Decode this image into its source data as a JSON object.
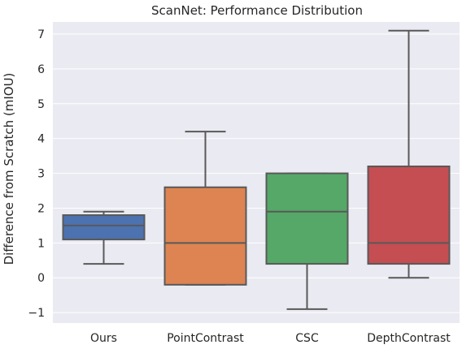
{
  "chart_data": {
    "type": "box",
    "title": "ScanNet: Performance Distribution",
    "xlabel": "",
    "ylabel": "Difference from Scratch (mIOU)",
    "ylim": [
      -1.3,
      7.35
    ],
    "yticks": [
      -1,
      0,
      1,
      2,
      3,
      4,
      5,
      6,
      7
    ],
    "grid": true,
    "background": "#eaeaf2",
    "median_color": "#595959",
    "categories": [
      "Ours",
      "PointContrast",
      "CSC",
      "DepthContrast"
    ],
    "boxes": [
      {
        "category": "Ours",
        "whisker_low": 0.4,
        "q1": 1.1,
        "median": 1.5,
        "q3": 1.8,
        "whisker_high": 1.9,
        "color": "#4c72b0"
      },
      {
        "category": "PointContrast",
        "whisker_low": -0.2,
        "q1": -0.2,
        "median": 1.0,
        "q3": 2.6,
        "whisker_high": 4.2,
        "color": "#dd8452"
      },
      {
        "category": "CSC",
        "whisker_low": -0.9,
        "q1": 0.4,
        "median": 1.9,
        "q3": 3.0,
        "whisker_high": 3.0,
        "color": "#55a868"
      },
      {
        "category": "DepthContrast",
        "whisker_low": 0.0,
        "q1": 0.4,
        "median": 1.0,
        "q3": 3.2,
        "whisker_high": 7.1,
        "color": "#c44e52"
      }
    ]
  }
}
